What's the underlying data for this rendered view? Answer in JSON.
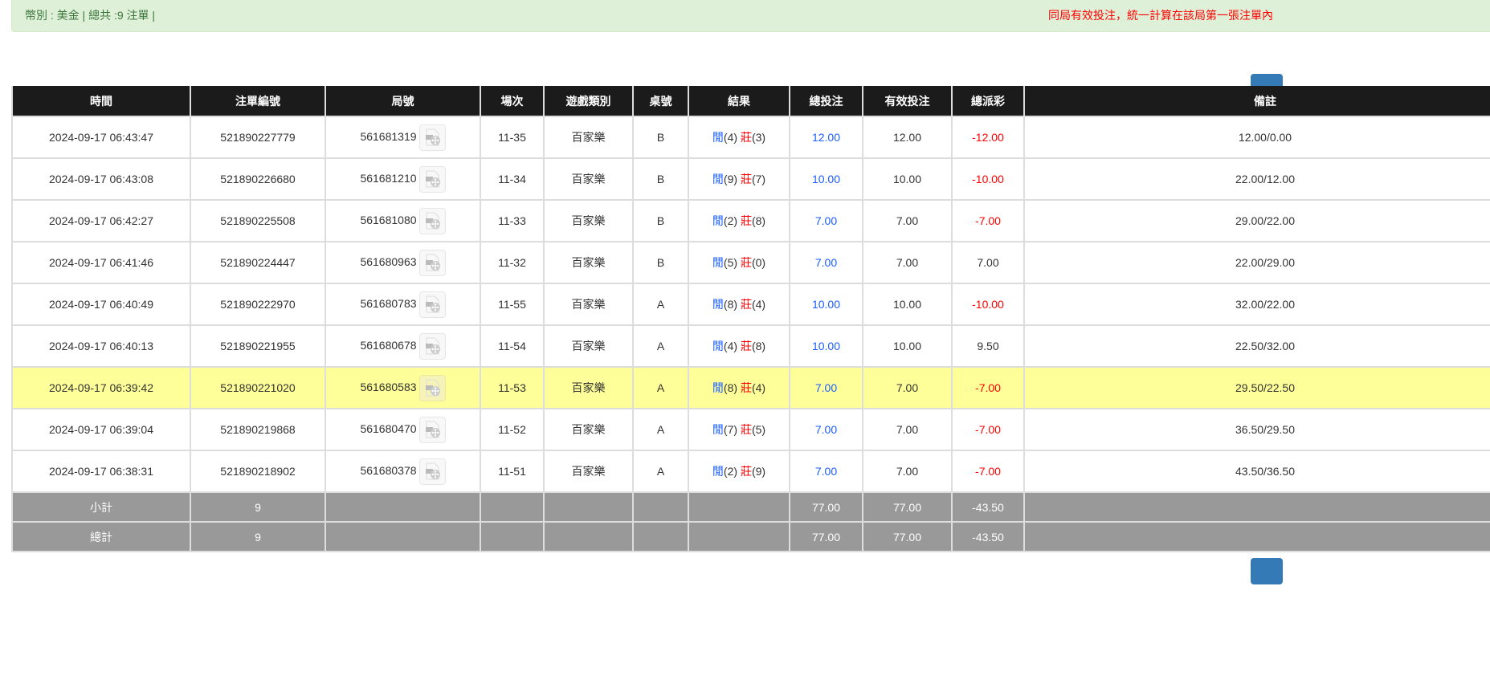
{
  "alert": {
    "summary": "幣別 : 美金 | 總共 :9 注單 |",
    "notice": "同局有效投注，統一計算在該局第一張注單內"
  },
  "table": {
    "headers": [
      "時間",
      "注單編號",
      "局號",
      "場次",
      "遊戲類別",
      "桌號",
      "結果",
      "總投注",
      "有效投注",
      "總派彩",
      "備註"
    ],
    "result_labels": {
      "player": "閒",
      "banker": "莊"
    },
    "highlight_row": 6,
    "rows": [
      {
        "time": "2024-09-17 06:43:47",
        "bet_id": "521890227779",
        "round": "561681319",
        "shoe": "11-35",
        "game": "百家樂",
        "table": "B",
        "player": "(4)",
        "banker": "(3)",
        "total_bet": "12.00",
        "valid_bet": "12.00",
        "payout": "-12.00",
        "note": "12.00/0.00"
      },
      {
        "time": "2024-09-17 06:43:08",
        "bet_id": "521890226680",
        "round": "561681210",
        "shoe": "11-34",
        "game": "百家樂",
        "table": "B",
        "player": "(9)",
        "banker": "(7)",
        "total_bet": "10.00",
        "valid_bet": "10.00",
        "payout": "-10.00",
        "note": "22.00/12.00"
      },
      {
        "time": "2024-09-17 06:42:27",
        "bet_id": "521890225508",
        "round": "561681080",
        "shoe": "11-33",
        "game": "百家樂",
        "table": "B",
        "player": "(2)",
        "banker": "(8)",
        "total_bet": "7.00",
        "valid_bet": "7.00",
        "payout": "-7.00",
        "note": "29.00/22.00"
      },
      {
        "time": "2024-09-17 06:41:46",
        "bet_id": "521890224447",
        "round": "561680963",
        "shoe": "11-32",
        "game": "百家樂",
        "table": "B",
        "player": "(5)",
        "banker": "(0)",
        "total_bet": "7.00",
        "valid_bet": "7.00",
        "payout": "7.00",
        "note": "22.00/29.00"
      },
      {
        "time": "2024-09-17 06:40:49",
        "bet_id": "521890222970",
        "round": "561680783",
        "shoe": "11-55",
        "game": "百家樂",
        "table": "A",
        "player": "(8)",
        "banker": "(4)",
        "total_bet": "10.00",
        "valid_bet": "10.00",
        "payout": "-10.00",
        "note": "32.00/22.00"
      },
      {
        "time": "2024-09-17 06:40:13",
        "bet_id": "521890221955",
        "round": "561680678",
        "shoe": "11-54",
        "game": "百家樂",
        "table": "A",
        "player": "(4)",
        "banker": "(8)",
        "total_bet": "10.00",
        "valid_bet": "10.00",
        "payout": "9.50",
        "note": "22.50/32.00"
      },
      {
        "time": "2024-09-17 06:39:42",
        "bet_id": "521890221020",
        "round": "561680583",
        "shoe": "11-53",
        "game": "百家樂",
        "table": "A",
        "player": "(8)",
        "banker": "(4)",
        "total_bet": "7.00",
        "valid_bet": "7.00",
        "payout": "-7.00",
        "note": "29.50/22.50"
      },
      {
        "time": "2024-09-17 06:39:04",
        "bet_id": "521890219868",
        "round": "561680470",
        "shoe": "11-52",
        "game": "百家樂",
        "table": "A",
        "player": "(7)",
        "banker": "(5)",
        "total_bet": "7.00",
        "valid_bet": "7.00",
        "payout": "-7.00",
        "note": "36.50/29.50"
      },
      {
        "time": "2024-09-17 06:38:31",
        "bet_id": "521890218902",
        "round": "561680378",
        "shoe": "11-51",
        "game": "百家樂",
        "table": "A",
        "player": "(2)",
        "banker": "(9)",
        "total_bet": "7.00",
        "valid_bet": "7.00",
        "payout": "-7.00",
        "note": "43.50/36.50"
      }
    ],
    "subtotal": {
      "label": "小計",
      "count": "9",
      "total_bet": "77.00",
      "valid_bet": "77.00",
      "payout": "-43.50"
    },
    "grandtotal": {
      "label": "總計",
      "count": "9",
      "total_bet": "77.00",
      "valid_bet": "77.00",
      "payout": "-43.50"
    }
  },
  "colors": {
    "header_bg": "#1b1b1b",
    "alert_bg": "#dff0d8",
    "highlight": "#ffff99",
    "summary_bg": "#999999",
    "blue": "#1a5cff",
    "red": "#ff0000",
    "button": "#337ab7"
  }
}
